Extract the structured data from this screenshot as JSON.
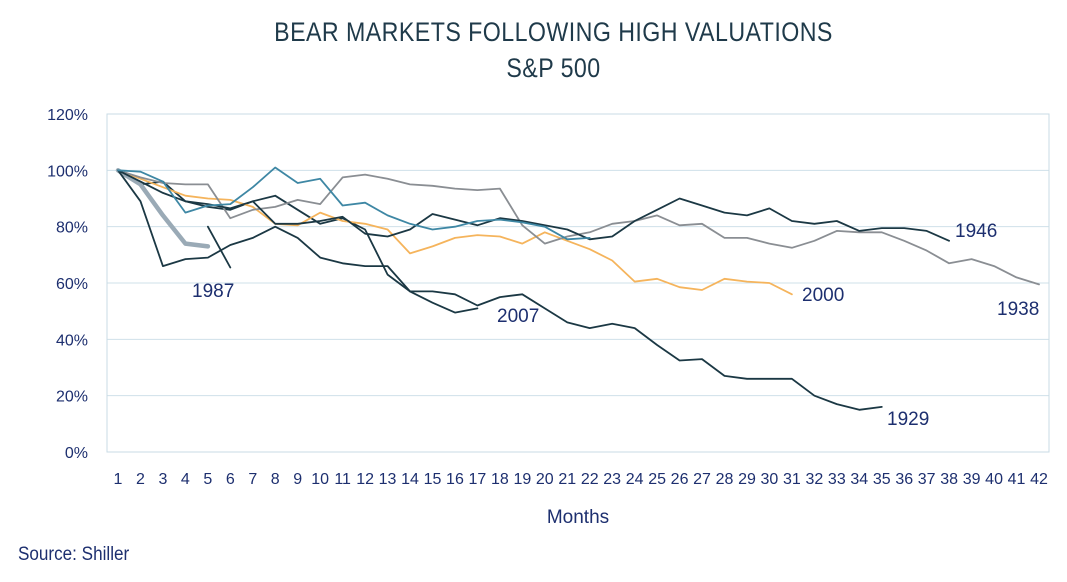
{
  "title": "BEAR MARKETS FOLLOWING HIGH VALUATIONS",
  "subtitle": "S&P 500",
  "source": "Source:  Shiller",
  "chart_data": {
    "type": "line",
    "title": "BEAR MARKETS FOLLOWING HIGH VALUATIONS",
    "subtitle": "S&P 500",
    "xlabel": "Months",
    "ylabel": "",
    "xlim": [
      1,
      42
    ],
    "ylim": [
      0,
      120
    ],
    "yticks": [
      "0%",
      "20%",
      "40%",
      "60%",
      "80%",
      "100%",
      "120%"
    ],
    "xticks": [
      "1",
      "2",
      "3",
      "4",
      "5",
      "6",
      "7",
      "8",
      "9",
      "10",
      "11",
      "12",
      "13",
      "14",
      "15",
      "16",
      "17",
      "18",
      "19",
      "20",
      "21",
      "22",
      "23",
      "24",
      "25",
      "26",
      "27",
      "28",
      "29",
      "30",
      "31",
      "32",
      "33",
      "34",
      "35",
      "36",
      "37",
      "38",
      "39",
      "40",
      "41",
      "42"
    ],
    "grid": "horizontal",
    "legend": "none",
    "series": [
      {
        "name": "1929",
        "color": "#1b3844",
        "label_color": "#1d2f6f",
        "values": [
          100,
          95,
          96,
          89,
          87,
          86,
          89,
          91,
          86,
          81,
          83,
          79,
          63,
          57,
          57,
          56,
          52,
          55,
          56,
          51,
          46,
          44,
          45.5,
          44,
          38,
          32.5,
          33,
          27,
          26,
          26,
          26,
          20,
          17,
          15,
          16
        ]
      },
      {
        "name": "1987",
        "color": "#9aaab6",
        "label_color": "#1d2f6f",
        "values": [
          100,
          95,
          84,
          74,
          73
        ]
      },
      {
        "name": "1987-spike",
        "color": "#1b3844",
        "values": [
          null,
          null,
          null,
          null,
          80,
          65.5
        ]
      },
      {
        "name": "2000",
        "color": "#f5b45c",
        "label_color": "#1d2f6f",
        "values": [
          100,
          97,
          94,
          91,
          90,
          89.5,
          87,
          81,
          80.5,
          85,
          82,
          81,
          79,
          70.5,
          73,
          76,
          77,
          76.5,
          74,
          78,
          75,
          72,
          68,
          60.5,
          61.5,
          58.5,
          57.5,
          61.5,
          60.5,
          60,
          56
        ]
      },
      {
        "name": "2007",
        "color": "#1b3844",
        "label_color": "#1d2f6f",
        "values": [
          100,
          89,
          66,
          68.5,
          69,
          73.5,
          76,
          80,
          76,
          69,
          67,
          66,
          66,
          57,
          53,
          49.5,
          51
        ]
      },
      {
        "name": "1938",
        "color": "#8a8e93",
        "label_color": "#1d2f6f",
        "values": [
          100,
          97.5,
          95.5,
          95,
          95,
          83,
          86,
          87,
          89.5,
          88,
          97.5,
          98.5,
          97,
          95,
          94.5,
          93.5,
          93,
          93.5,
          80.5,
          74,
          76.5,
          78,
          81,
          82,
          84,
          80.5,
          81,
          76,
          76,
          74,
          72.5,
          75,
          78.5,
          78,
          78,
          75,
          71.5,
          67,
          68.5,
          66,
          62,
          59.5
        ]
      },
      {
        "name": "1946",
        "color": "#1b3844",
        "label_color": "#1d2f6f",
        "values": [
          100,
          96,
          92,
          89,
          88,
          86.5,
          89,
          81,
          81,
          82,
          83.5,
          77.5,
          76.5,
          79,
          84.5,
          82.5,
          80.5,
          83,
          82,
          80.5,
          79,
          75.5,
          76.5,
          82,
          86,
          90,
          87.5,
          85,
          84,
          86.5,
          82,
          81,
          82,
          78.5,
          79.5,
          79.5,
          78.5,
          75
        ]
      },
      {
        "name": "steel",
        "color": "#3e87a4",
        "values": [
          100,
          99.5,
          96,
          85,
          87.5,
          88,
          94,
          101,
          95.5,
          97,
          87.5,
          88.5,
          84,
          81,
          79,
          80,
          82,
          82.5,
          81.5,
          80,
          75.5,
          76
        ]
      }
    ],
    "annotations": [
      {
        "text": "1987"
      },
      {
        "text": "2007"
      },
      {
        "text": "2000"
      },
      {
        "text": "1938"
      },
      {
        "text": "1946"
      },
      {
        "text": "1929"
      }
    ]
  }
}
